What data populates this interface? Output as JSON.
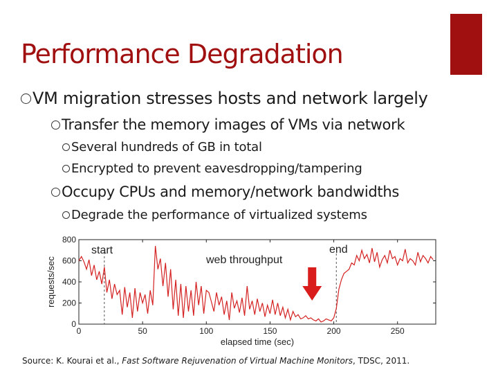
{
  "slide": {
    "title": "Performance Degradation",
    "accent_color": "#a01010",
    "bullets": [
      {
        "level": 1,
        "text": "VM migration stresses hosts and network largely"
      },
      {
        "level": 2,
        "text": "Transfer the memory images of VMs via network"
      },
      {
        "level": 3,
        "text": "Several hundreds of GB in total"
      },
      {
        "level": 3,
        "text": "Encrypted to prevent eavesdropping/tampering"
      },
      {
        "level": 2,
        "text": "Occupy CPUs and memory/network bandwidths"
      },
      {
        "level": 3,
        "text": "Degrade the performance of virtualized systems"
      }
    ],
    "source": {
      "prefix": "Source: K. Kourai et al.,",
      "title": "Fast Software Rejuvenation of Virtual Machine Monitors",
      "suffix": ", TDSC, 2011."
    }
  },
  "chart_data": {
    "type": "line",
    "xlabel": "elapsed time (sec)",
    "ylabel": "requests/sec",
    "xlim": [
      0,
      280
    ],
    "ylim": [
      0,
      800
    ],
    "xticks": [
      0,
      50,
      100,
      150,
      200,
      250
    ],
    "yticks": [
      0,
      200,
      400,
      600,
      800
    ],
    "line_color": "#d42020",
    "grid": false,
    "annotations": {
      "start": {
        "label": "start",
        "x": 20
      },
      "end": {
        "label": "end",
        "x": 202
      },
      "series_label": "web throughput",
      "arrow_x": 183
    },
    "series": [
      {
        "x": [
          0,
          2,
          4,
          6,
          8,
          10,
          12,
          14,
          16,
          18,
          20,
          22,
          24,
          26,
          28,
          30,
          32,
          34,
          36,
          38,
          40,
          42,
          44,
          46,
          48,
          50,
          52,
          54,
          56,
          58,
          60,
          62,
          64,
          66,
          68,
          70,
          72,
          74,
          76,
          78,
          80,
          82,
          84,
          86,
          88,
          90,
          92,
          94,
          96,
          98,
          100,
          102,
          104,
          106,
          108,
          110,
          112,
          114,
          116,
          118,
          120,
          122,
          124,
          126,
          128,
          130,
          132,
          134,
          136,
          138,
          140,
          142,
          144,
          146,
          148,
          150,
          152,
          154,
          156,
          158,
          160,
          162,
          164,
          166,
          168,
          170,
          172,
          174,
          176,
          178,
          180,
          182,
          184,
          186,
          188,
          190,
          192,
          194,
          196,
          198,
          200,
          202,
          204,
          206,
          208,
          210,
          212,
          214,
          216,
          218,
          220,
          222,
          224,
          226,
          228,
          230,
          232,
          234,
          236,
          238,
          240,
          242,
          244,
          246,
          248,
          250,
          252,
          254,
          256,
          258,
          260,
          262,
          264,
          266,
          268,
          270,
          272,
          274,
          276,
          278
        ],
        "values": [
          600,
          640,
          590,
          520,
          610,
          460,
          560,
          420,
          500,
          380,
          540,
          300,
          420,
          240,
          380,
          280,
          320,
          90,
          350,
          160,
          300,
          60,
          340,
          120,
          300,
          200,
          280,
          100,
          320,
          180,
          740,
          520,
          620,
          360,
          580,
          260,
          520,
          140,
          420,
          80,
          380,
          60,
          360,
          120,
          320,
          80,
          400,
          180,
          360,
          100,
          320,
          300,
          210,
          120,
          300,
          180,
          260,
          90,
          220,
          40,
          300,
          150,
          220,
          110,
          250,
          80,
          360,
          140,
          220,
          90,
          240,
          120,
          200,
          70,
          180,
          100,
          230,
          90,
          200,
          80,
          160,
          60,
          140,
          40,
          120,
          70,
          90,
          50,
          60,
          80,
          50,
          60,
          40,
          30,
          50,
          20,
          30,
          50,
          40,
          30,
          60,
          150,
          330,
          420,
          480,
          500,
          520,
          580,
          560,
          650,
          600,
          700,
          620,
          660,
          580,
          720,
          590,
          680,
          540,
          610,
          650,
          580,
          700,
          620,
          640,
          560,
          620,
          600,
          710,
          580,
          620,
          600,
          560,
          680,
          590,
          650,
          620,
          580,
          640,
          610
        ]
      }
    ]
  }
}
